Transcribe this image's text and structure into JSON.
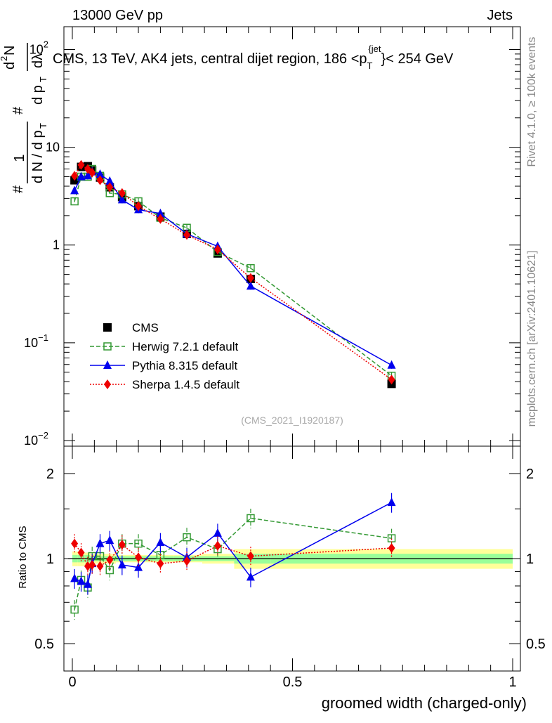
{
  "header": {
    "energy_label": "13000 GeV pp",
    "category_label": "Jets",
    "side_label": "Rivet 4.1.0, ≥ 100k events",
    "side_label_2": "mcplots.cern.ch [arXiv:2401.10621]"
  },
  "chart_data": [
    {
      "type": "line",
      "title": "CMS, 13 TeV, AK4 jets, central dijet region, 186 <p_T^{jet}< 254 GeV",
      "title_parts": {
        "prefix": "CMS, 13 TeV, AK4 jets, central dijet region, 186 <p",
        "sub": "T",
        "sup": "{jet",
        "suffix": "}< 254 GeV"
      },
      "ylabel_parts": [
        "#",
        "1",
        "d N / d p",
        "T",
        "#",
        "d p",
        "T",
        "d",
        "2",
        "N",
        "dλ"
      ],
      "xlabel": "groomed width (charged-only)",
      "yscale": "log",
      "ylim": [
        0.01,
        150
      ],
      "xlim": [
        -0.02,
        1.0
      ],
      "y_ticks": [
        {
          "value": 0.01,
          "label": "10",
          "exp": "−2"
        },
        {
          "value": 0.1,
          "label": "10",
          "exp": "−1"
        },
        {
          "value": 1,
          "label": "1",
          "exp": ""
        },
        {
          "value": 10,
          "label": "10",
          "exp": ""
        },
        {
          "value": 100,
          "label": "10",
          "exp": "2"
        }
      ],
      "watermark": "(CMS_2021_I1920187)",
      "x": [
        0.005,
        0.02,
        0.035,
        0.045,
        0.063,
        0.085,
        0.113,
        0.15,
        0.2,
        0.26,
        0.33,
        0.405,
        0.725
      ],
      "series": [
        {
          "name": "CMS",
          "color": "#000000",
          "marker": "square",
          "values": [
            4.6,
            6.3,
            6.4,
            5.8,
            4.9,
            3.9,
            3.1,
            2.5,
            1.95,
            1.3,
            0.82,
            0.45,
            0.038
          ]
        },
        {
          "name": "Herwig 7.2.1 default",
          "color": "#339933",
          "marker": "open-square",
          "dash": "6,3",
          "values": [
            2.8,
            5.0,
            5.0,
            6.0,
            5.1,
            3.4,
            3.3,
            2.8,
            1.9,
            1.5,
            0.85,
            0.58,
            0.046
          ]
        },
        {
          "name": "Pythia 8.315 default",
          "color": "#0000ee",
          "marker": "triangle",
          "dash": "",
          "values": [
            3.6,
            5.0,
            5.1,
            5.6,
            5.3,
            4.5,
            2.9,
            2.3,
            2.1,
            1.3,
            0.97,
            0.38,
            0.059
          ]
        },
        {
          "name": "Sherpa 1.4.5 default",
          "color": "#ee0000",
          "marker": "diamond",
          "dash": "2,2",
          "values": [
            5.1,
            6.6,
            6.0,
            5.5,
            4.6,
            3.9,
            3.4,
            2.5,
            1.85,
            1.27,
            0.9,
            0.46,
            0.042
          ]
        }
      ]
    },
    {
      "type": "line",
      "ylabel": "Ratio to CMS",
      "xlabel": "groomed width (charged-only)",
      "ylim": [
        0.4,
        2.5
      ],
      "yscale": "log",
      "y_ticks": [
        {
          "value": 0.5,
          "label": "0.5"
        },
        {
          "value": 1,
          "label": "1"
        },
        {
          "value": 2,
          "label": "2"
        }
      ],
      "x_ticks": [
        {
          "value": 0,
          "label": "0"
        },
        {
          "value": 0.5,
          "label": "0.5"
        },
        {
          "value": 1,
          "label": "1"
        }
      ],
      "x": [
        0.005,
        0.02,
        0.035,
        0.045,
        0.063,
        0.085,
        0.113,
        0.15,
        0.2,
        0.26,
        0.33,
        0.405,
        0.725
      ],
      "band": {
        "yellow_lo": [
          0.94,
          0.94,
          0.95,
          0.96,
          0.96,
          0.96,
          0.97,
          0.97,
          0.97,
          0.97,
          0.96,
          0.92,
          0.92
        ],
        "yellow_hi": [
          1.06,
          1.06,
          1.05,
          1.04,
          1.04,
          1.04,
          1.03,
          1.03,
          1.03,
          1.03,
          1.04,
          1.08,
          1.08
        ],
        "green_lo": [
          0.97,
          0.97,
          0.97,
          0.98,
          0.98,
          0.98,
          0.98,
          0.98,
          0.98,
          0.98,
          0.98,
          0.96,
          0.96
        ],
        "green_hi": [
          1.03,
          1.03,
          1.03,
          1.02,
          1.02,
          1.02,
          1.02,
          1.02,
          1.02,
          1.02,
          1.02,
          1.04,
          1.04
        ]
      },
      "series": [
        {
          "name": "Herwig 7.2.1 default",
          "color": "#339933",
          "marker": "open-square",
          "dash": "6,3",
          "values": [
            0.66,
            0.84,
            0.79,
            1.02,
            1.02,
            0.91,
            1.13,
            1.13,
            1.03,
            1.19,
            1.08,
            1.39,
            1.18
          ]
        },
        {
          "name": "Pythia 8.315 default",
          "color": "#0000ee",
          "marker": "triangle",
          "dash": "",
          "values": [
            0.85,
            0.83,
            0.81,
            0.96,
            1.13,
            1.16,
            0.95,
            0.93,
            1.14,
            1.01,
            1.23,
            0.86,
            1.58
          ]
        },
        {
          "name": "Sherpa 1.4.5 default",
          "color": "#ee0000",
          "marker": "diamond",
          "dash": "2,2",
          "values": [
            1.13,
            1.05,
            0.94,
            0.95,
            0.94,
            0.99,
            1.12,
            1.01,
            0.96,
            0.98,
            1.11,
            1.02,
            1.09
          ]
        }
      ]
    }
  ]
}
